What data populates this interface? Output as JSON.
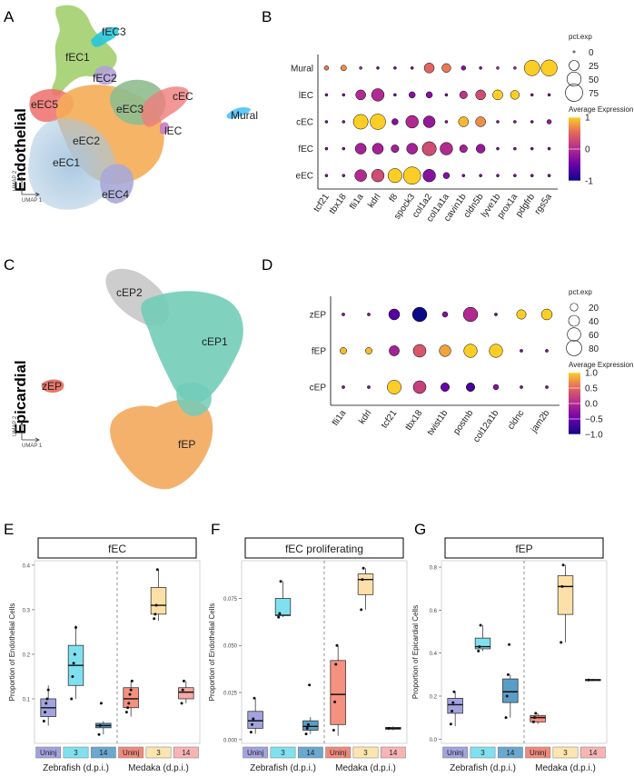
{
  "panel_letters": [
    "A",
    "B",
    "C",
    "D",
    "E",
    "F",
    "G"
  ],
  "umapA": {
    "side_label": "Endothelial",
    "clusters": [
      {
        "name": "fEC3",
        "color": "#26c6da"
      },
      {
        "name": "fEC1",
        "color": "#9ccc65"
      },
      {
        "name": "fEC2",
        "color": "#b39ddb"
      },
      {
        "name": "eEC5",
        "color": "#ef6f6a"
      },
      {
        "name": "eEC3",
        "color": "#8fbc8f"
      },
      {
        "name": "eEC2",
        "color": "#f5ac57"
      },
      {
        "name": "eEC1",
        "color": "#a7c7e0"
      },
      {
        "name": "eEC4",
        "color": "#a9a9d8"
      },
      {
        "name": "cEC",
        "color": "#f07c7c"
      },
      {
        "name": "lEC",
        "color": "#c77dc7"
      },
      {
        "name": "Mural",
        "color": "#4fc3f7"
      }
    ],
    "axis_y": "UMAP 2",
    "axis_x": "UMAP 1"
  },
  "umapC": {
    "side_label": "Epicardial",
    "clusters": [
      {
        "name": "cEP2",
        "color": "#c8c8c8"
      },
      {
        "name": "cEP1",
        "color": "#72cdb8"
      },
      {
        "name": "fEP",
        "color": "#f3a85c"
      },
      {
        "name": "zEP",
        "color": "#e8675a"
      }
    ],
    "axis_y": "UMAP 2",
    "axis_x": "UMAP 1"
  },
  "chart_data": [
    {
      "type": "dotplot",
      "panel": "B",
      "rows": [
        "Mural",
        "lEC",
        "cEC",
        "fEC",
        "eEC"
      ],
      "genes": [
        "tcf21",
        "tbx18",
        "fli1a",
        "kdrl",
        "f8",
        "spock3",
        "col1a2",
        "col1a1a",
        "cavin1b",
        "cldn5b",
        "lyve1b",
        "prox1a",
        "pdgfrb",
        "rgs5a"
      ],
      "size_legend_title": "pct.exp",
      "size_legend_values": [
        0,
        25,
        50,
        75
      ],
      "color_legend_title": "Average Expression",
      "color_legend_ticks": [
        1,
        0,
        -1
      ],
      "color_legend_labels": [
        "1",
        "0",
        "-1"
      ],
      "expr": [
        [
          0.6,
          0.7,
          0.0,
          -0.3,
          -0.3,
          -0.3,
          0.5,
          0.6,
          -0.3,
          -0.3,
          0.0,
          0.0,
          1.3,
          1.3
        ],
        [
          -0.3,
          -0.3,
          0.0,
          0.0,
          -0.4,
          -0.3,
          -0.3,
          -0.4,
          0.1,
          0.3,
          1.0,
          1.0,
          -0.3,
          -0.3
        ],
        [
          -0.3,
          -0.3,
          1.1,
          1.1,
          -0.3,
          0.0,
          -0.2,
          -0.3,
          0.9,
          0.7,
          -0.3,
          -0.3,
          -0.3,
          -0.2
        ],
        [
          -0.3,
          -0.3,
          -0.1,
          -0.1,
          -0.1,
          -0.1,
          0.3,
          0.0,
          -0.1,
          -0.2,
          -0.3,
          -0.3,
          -0.3,
          -0.3
        ],
        [
          -0.3,
          -0.3,
          0.0,
          0.3,
          1.3,
          1.3,
          -0.3,
          -0.3,
          -0.4,
          -0.4,
          -0.4,
          -0.4,
          -0.4,
          -0.4
        ]
      ],
      "pct": [
        [
          5,
          8,
          2,
          2,
          2,
          2,
          25,
          20,
          5,
          2,
          2,
          2,
          60,
          65
        ],
        [
          2,
          2,
          25,
          40,
          2,
          10,
          10,
          2,
          15,
          25,
          25,
          20,
          2,
          2
        ],
        [
          2,
          2,
          55,
          60,
          10,
          40,
          35,
          2,
          25,
          25,
          2,
          2,
          2,
          5
        ],
        [
          2,
          2,
          30,
          30,
          15,
          30,
          50,
          40,
          15,
          20,
          2,
          2,
          2,
          2
        ],
        [
          2,
          2,
          35,
          40,
          50,
          75,
          40,
          10,
          2,
          2,
          2,
          2,
          2,
          2
        ]
      ]
    },
    {
      "type": "dotplot",
      "panel": "D",
      "rows": [
        "zEP",
        "fEP",
        "cEP"
      ],
      "genes": [
        "fli1a",
        "kdrl",
        "tcf21",
        "tbx18",
        "twist1b",
        "postnb",
        "col12a1b",
        "cldnc",
        "jam2b"
      ],
      "size_legend_title": "pct.exp",
      "size_legend_values": [
        20,
        40,
        60,
        80
      ],
      "color_legend_title": "Average Expression",
      "color_legend_ticks": [
        1.0,
        0.5,
        0.0,
        -0.5,
        -1.0
      ],
      "color_legend_labels": [
        "1.0",
        "0.5",
        "0.0",
        "−0.5",
        "−1.0"
      ],
      "expr": [
        [
          -0.3,
          -0.3,
          -0.6,
          -1.0,
          -0.3,
          0.0,
          -0.4,
          1.0,
          1.0
        ],
        [
          0.9,
          0.9,
          -0.1,
          0.4,
          0.8,
          1.0,
          1.0,
          -0.3,
          -0.3
        ],
        [
          -0.3,
          -0.3,
          1.1,
          0.2,
          -0.5,
          -0.7,
          -0.3,
          -0.3,
          -0.3
        ]
      ],
      "pct": [
        [
          3,
          3,
          40,
          70,
          10,
          70,
          3,
          30,
          40
        ],
        [
          15,
          15,
          35,
          55,
          45,
          60,
          60,
          3,
          3
        ],
        [
          3,
          3,
          65,
          55,
          25,
          25,
          10,
          3,
          3
        ]
      ]
    },
    {
      "type": "boxplot",
      "panel": "E",
      "facet_title": "fEC",
      "ylabel": "Proportion of Endothelial Cells",
      "y_ticks": [
        0.1,
        0.2,
        0.3,
        0.4
      ],
      "y_tick_labels": [
        "0.1",
        "0.2",
        "0.3",
        "0.4"
      ],
      "ylim": [
        0.0,
        0.41
      ],
      "groups": [
        "Uninj",
        "3",
        "14",
        "Uninj",
        "3",
        "14"
      ],
      "species_labels": [
        "Zebrafish (d.p.i.)",
        "Medaka (d.p.i.)"
      ],
      "boxes": [
        {
          "min": 0.04,
          "q1": 0.06,
          "med": 0.08,
          "q3": 0.1,
          "max": 0.13,
          "points": [
            0.05,
            0.07,
            0.09,
            0.1,
            0.12
          ]
        },
        {
          "min": 0.1,
          "q1": 0.13,
          "med": 0.175,
          "q3": 0.22,
          "max": 0.265,
          "points": [
            0.1,
            0.15,
            0.18,
            0.2,
            0.26
          ]
        },
        {
          "min": 0.02,
          "q1": 0.035,
          "med": 0.04,
          "q3": 0.045,
          "max": 0.05,
          "points": [
            0.02,
            0.04,
            0.09
          ]
        },
        {
          "min": 0.06,
          "q1": 0.08,
          "med": 0.1,
          "q3": 0.125,
          "max": 0.14,
          "points": [
            0.07,
            0.08,
            0.09,
            0.11,
            0.12,
            0.14
          ]
        },
        {
          "min": 0.275,
          "q1": 0.29,
          "med": 0.31,
          "q3": 0.35,
          "max": 0.39,
          "points": [
            0.28,
            0.29,
            0.31,
            0.39
          ]
        },
        {
          "min": 0.09,
          "q1": 0.1,
          "med": 0.115,
          "q3": 0.125,
          "max": 0.14,
          "points": [
            0.09,
            0.12,
            0.14
          ]
        }
      ]
    },
    {
      "type": "boxplot",
      "panel": "F",
      "facet_title": "fEC proliferating",
      "ylabel": "Proportion of Endothelial Cells",
      "y_ticks": [
        0.0,
        0.025,
        0.05,
        0.075
      ],
      "y_tick_labels": [
        "0.000",
        "0.025",
        "0.050",
        "0.075"
      ],
      "ylim": [
        -0.002,
        0.095
      ],
      "groups": [
        "Uninj",
        "3",
        "14",
        "Uninj",
        "3",
        "14"
      ],
      "species_labels": [
        "Zebrafish (d.p.i.)",
        "Medaka (d.p.i.)"
      ],
      "boxes": [
        {
          "min": 0.003,
          "q1": 0.006,
          "med": 0.01,
          "q3": 0.015,
          "max": 0.022,
          "points": [
            0.004,
            0.008,
            0.011,
            0.022
          ]
        },
        {
          "min": 0.065,
          "q1": 0.066,
          "med": 0.066,
          "q3": 0.075,
          "max": 0.084,
          "points": [
            0.065,
            0.067,
            0.084
          ]
        },
        {
          "min": 0.003,
          "q1": 0.005,
          "med": 0.007,
          "q3": 0.01,
          "max": 0.012,
          "points": [
            0.003,
            0.006,
            0.008,
            0.029
          ]
        },
        {
          "min": 0.002,
          "q1": 0.008,
          "med": 0.024,
          "q3": 0.042,
          "max": 0.05,
          "points": [
            0.005,
            0.02,
            0.04,
            0.05
          ]
        },
        {
          "min": 0.069,
          "q1": 0.077,
          "med": 0.085,
          "q3": 0.088,
          "max": 0.091,
          "points": [
            0.069,
            0.085,
            0.091
          ]
        },
        {
          "min": 0.005,
          "q1": 0.0055,
          "med": 0.006,
          "q3": 0.0065,
          "max": 0.007,
          "points": [
            0.006
          ]
        }
      ]
    },
    {
      "type": "boxplot",
      "panel": "G",
      "facet_title": "fEP",
      "ylabel": "Proportion of Epicardial Cells",
      "y_ticks": [
        0.0,
        0.2,
        0.4,
        0.6,
        0.8
      ],
      "y_tick_labels": [
        "0.0",
        "0.2",
        "0.4",
        "0.6",
        "0.8"
      ],
      "ylim": [
        -0.02,
        0.83
      ],
      "groups": [
        "Uninj",
        "3",
        "14",
        "Uninj",
        "3",
        "14"
      ],
      "species_labels": [
        "Zebrafish (d.p.i.)",
        "Medaka (d.p.i.)"
      ],
      "boxes": [
        {
          "min": 0.06,
          "q1": 0.12,
          "med": 0.16,
          "q3": 0.19,
          "max": 0.22,
          "points": [
            0.07,
            0.13,
            0.17,
            0.22
          ]
        },
        {
          "min": 0.41,
          "q1": 0.42,
          "med": 0.43,
          "q3": 0.47,
          "max": 0.53,
          "points": [
            0.41,
            0.43,
            0.53
          ]
        },
        {
          "min": 0.1,
          "q1": 0.17,
          "med": 0.22,
          "q3": 0.28,
          "max": 0.3,
          "points": [
            0.1,
            0.2,
            0.3,
            0.44
          ]
        },
        {
          "min": 0.07,
          "q1": 0.08,
          "med": 0.1,
          "q3": 0.11,
          "max": 0.12,
          "points": [
            0.08,
            0.1,
            0.12
          ]
        },
        {
          "min": 0.45,
          "q1": 0.58,
          "med": 0.71,
          "q3": 0.76,
          "max": 0.81,
          "points": [
            0.45,
            0.71,
            0.81
          ]
        },
        {
          "min": 0.27,
          "q1": 0.272,
          "med": 0.275,
          "q3": 0.278,
          "max": 0.28,
          "points": [
            0.275
          ]
        }
      ]
    }
  ]
}
